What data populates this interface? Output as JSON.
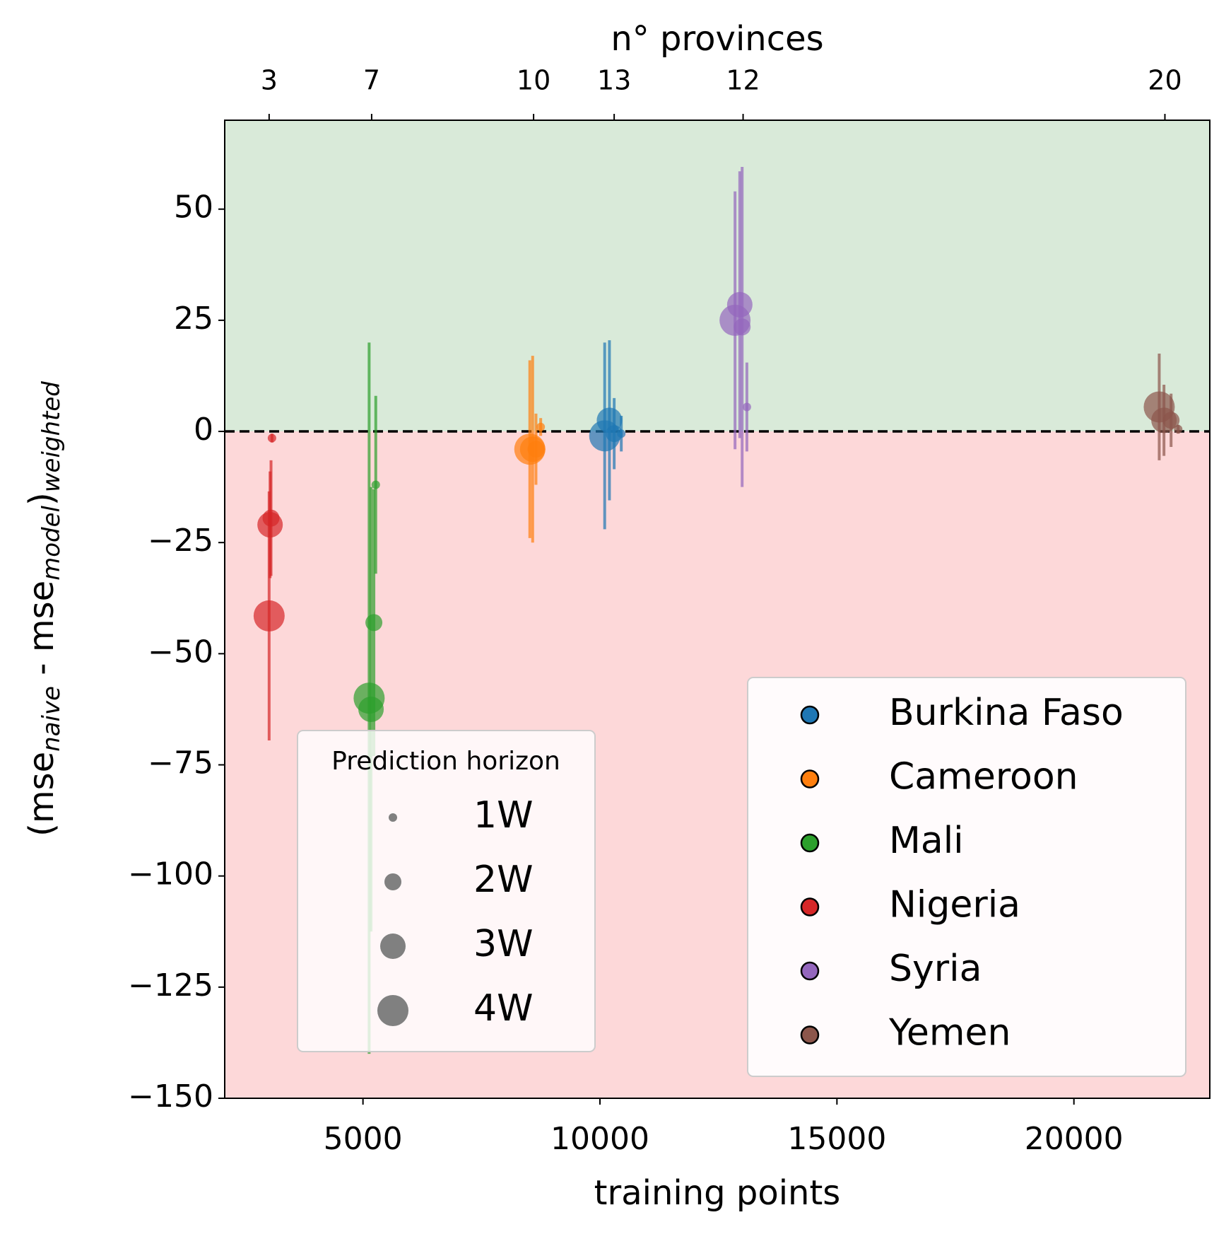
{
  "chart_data": {
    "type": "scatter",
    "xlabel": "training points",
    "ylabel_parts": [
      "(mse",
      "naive",
      " - mse",
      "model",
      ")",
      "weighted"
    ],
    "x2label": "n° provinces",
    "xlim": [
      2083,
      22867
    ],
    "ylim": [
      -150,
      70
    ],
    "xticks": [
      5000,
      10000,
      15000,
      20000
    ],
    "yticks": [
      {
        "value": -150,
        "label": "−150"
      },
      {
        "value": -125,
        "label": "−125"
      },
      {
        "value": -100,
        "label": "−100"
      },
      {
        "value": -75,
        "label": "−75"
      },
      {
        "value": -50,
        "label": "−50"
      },
      {
        "value": -25,
        "label": "−25"
      },
      0,
      25,
      50
    ],
    "x2ticks": [
      {
        "value": 3020,
        "label": "3"
      },
      {
        "value": 5183,
        "label": "7"
      },
      {
        "value": 8600,
        "label": "10"
      },
      {
        "value": 10300,
        "label": "13"
      },
      {
        "value": 13020,
        "label": "12"
      },
      {
        "value": 21920,
        "label": "20"
      }
    ],
    "hline": 0,
    "shade_above": "#d9ead9",
    "shade_below": "#fdd8d9",
    "legend_loc": "lower right",
    "series": [
      {
        "name": "Burkina Faso",
        "color": "#1f77b4",
        "x": [
          10450,
          10300,
          10200,
          10100
        ],
        "values": [
          -0.5,
          -0.5,
          2.5,
          -1
        ],
        "errors": [
          4,
          8,
          18,
          21
        ]
      },
      {
        "name": "Cameroon",
        "color": "#ff7f0e",
        "x": [
          8750,
          8650,
          8580,
          8520
        ],
        "values": [
          1,
          -4,
          -4,
          -4
        ],
        "errors": [
          2,
          8,
          21,
          20
        ]
      },
      {
        "name": "Mali",
        "color": "#2ca02c",
        "x": [
          5270,
          5230,
          5170,
          5130
        ],
        "values": [
          -12,
          -43,
          -62.5,
          -60
        ],
        "errors": [
          20,
          30,
          50,
          80
        ]
      },
      {
        "name": "Nigeria",
        "color": "#d62728",
        "x": [
          3080,
          3060,
          3040,
          3020
        ],
        "values": [
          -1.5,
          -19.5,
          -21,
          -41.5
        ],
        "errors": [
          1,
          13,
          12,
          28
        ]
      },
      {
        "name": "Syria",
        "color": "#9467bd",
        "x": [
          13100,
          13000,
          12950,
          12850
        ],
        "values": [
          5.5,
          23.5,
          28.5,
          25
        ],
        "errors": [
          10,
          36,
          30,
          29
        ]
      },
      {
        "name": "Yemen",
        "color": "#8c564b",
        "x": [
          22200,
          22050,
          21900,
          21800
        ],
        "values": [
          0.5,
          2.5,
          2.5,
          5.5
        ],
        "errors": [
          1,
          6,
          8,
          12
        ]
      }
    ],
    "size_legend": {
      "title": "Prediction horizon",
      "labels": [
        "1W",
        "2W",
        "3W",
        "4W"
      ]
    }
  }
}
